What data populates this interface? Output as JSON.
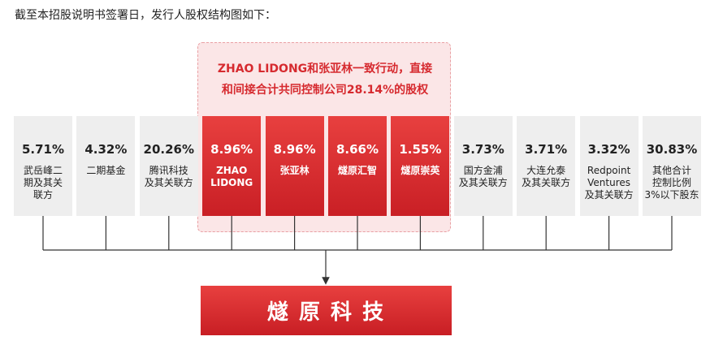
{
  "intro": "截至本招股说明书签署日，发行人股权结构图如下：",
  "group_label": [
    "ZHAO LIDONG和张亚林一致行动，直接",
    "和间接合计共同控制公司28.14%的股权"
  ],
  "shareholders": [
    {
      "percent": "5.71%",
      "name": [
        "武岳峰二",
        "期及其关",
        "联方"
      ]
    },
    {
      "percent": "4.32%",
      "name": [
        "二期基金"
      ]
    },
    {
      "percent": "20.26%",
      "name": [
        "腾讯科技",
        "及其关联方"
      ]
    },
    {
      "percent": "8.96%",
      "name": [
        "ZHAO",
        "LIDONG"
      ]
    },
    {
      "percent": "8.96%",
      "name": [
        "张亚林"
      ]
    },
    {
      "percent": "8.66%",
      "name": [
        "燧原汇智"
      ]
    },
    {
      "percent": "1.55%",
      "name": [
        "燧原崇英"
      ]
    },
    {
      "percent": "3.73%",
      "name": [
        "国方金浦",
        "及其关联方"
      ]
    },
    {
      "percent": "3.71%",
      "name": [
        "大连允泰",
        "及其关联方"
      ]
    },
    {
      "percent": "3.32%",
      "name": [
        "Redpoint",
        "Ventures",
        "及其关联方"
      ]
    },
    {
      "percent": "30.83%",
      "name": [
        "其他合计",
        "控制比例",
        "3%以下股东"
      ]
    }
  ],
  "company": "燧 原 科 技"
}
